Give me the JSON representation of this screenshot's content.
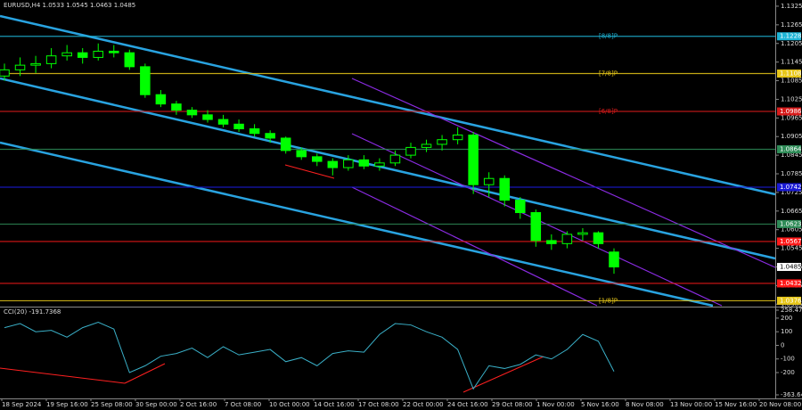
{
  "chart_data": [
    {
      "type": "candlestick",
      "symbol": "EURUSD,H4",
      "up_color": "#00ff00",
      "down_color": "#00ff00",
      "ylim": [
        1.036,
        1.1345
      ],
      "yticks": [
        1.1325,
        1.1265,
        1.1205,
        1.1145,
        1.1085,
        1.1025,
        1.0965,
        1.0905,
        1.0845,
        1.0785,
        1.0725,
        1.0665,
        1.0605,
        1.0545,
        1.0485,
        1.0425,
        1.0365
      ],
      "xlabels": [
        "18 Sep 2024",
        "19 Sep 16:00",
        "25 Sep 08:00",
        "30 Sep 00:00",
        "2 Oct 16:00",
        "7 Oct 08:00",
        "10 Oct 00:00",
        "14 Oct 16:00",
        "17 Oct 08:00",
        "22 Oct 00:00",
        "24 Oct 16:00",
        "29 Oct 08:00",
        "1 Nov 00:00",
        "5 Nov 16:00",
        "8 Nov 08:00",
        "13 Nov 00:00",
        "15 Nov 16:00",
        "20 Nov 08:00"
      ],
      "levels": [
        {
          "value": 1.1228,
          "label": "[8/8]P",
          "color": "#1fb5d6"
        },
        {
          "value": 1.1108,
          "label": "[7/8]P",
          "color": "#e6c619"
        },
        {
          "value": 1.0986,
          "label": "[6/8]P",
          "color": "#d81b1b"
        },
        {
          "value": 1.0864,
          "color": "#2e8b57"
        },
        {
          "value": 1.0742,
          "color": "#1a1ad6"
        },
        {
          "value": 1.0623,
          "color": "#2e8b57"
        },
        {
          "value": 1.0567,
          "color": "#ff1a1a"
        },
        {
          "value": 1.0432,
          "color": "#ff1a1a"
        },
        {
          "value": 1.0376,
          "label": "[1/8]P",
          "color": "#e6c619"
        }
      ],
      "candles": [
        [
          1.11,
          1.114,
          1.1085,
          1.112
        ],
        [
          1.112,
          1.116,
          1.11,
          1.1135
        ],
        [
          1.1135,
          1.1165,
          1.111,
          1.114
        ],
        [
          1.114,
          1.119,
          1.1125,
          1.1165
        ],
        [
          1.1165,
          1.12,
          1.115,
          1.1175
        ],
        [
          1.1175,
          1.119,
          1.114,
          1.116
        ],
        [
          1.116,
          1.1205,
          1.115,
          1.118
        ],
        [
          1.118,
          1.12,
          1.116,
          1.1175
        ],
        [
          1.1175,
          1.1185,
          1.112,
          1.113
        ],
        [
          1.113,
          1.114,
          1.103,
          1.104
        ],
        [
          1.104,
          1.1055,
          1.1,
          1.101
        ],
        [
          1.101,
          1.102,
          1.0975,
          1.099
        ],
        [
          1.099,
          1.1,
          1.0965,
          1.0975
        ],
        [
          1.0975,
          1.099,
          1.095,
          1.096
        ],
        [
          1.096,
          1.0975,
          1.0935,
          1.0945
        ],
        [
          1.0945,
          1.096,
          1.092,
          1.093
        ],
        [
          1.093,
          1.0945,
          1.0905,
          1.0915
        ],
        [
          1.0915,
          1.0925,
          1.0885,
          1.09
        ],
        [
          1.09,
          1.0905,
          1.085,
          1.086
        ],
        [
          1.086,
          1.087,
          1.083,
          1.084
        ],
        [
          1.084,
          1.085,
          1.081,
          1.0825
        ],
        [
          1.0825,
          1.0835,
          1.078,
          1.0805
        ],
        [
          1.0805,
          1.0845,
          1.0795,
          1.083
        ],
        [
          1.083,
          1.0845,
          1.08,
          1.081
        ],
        [
          1.081,
          1.0835,
          1.0795,
          1.082
        ],
        [
          1.082,
          1.086,
          1.081,
          1.0845
        ],
        [
          1.0845,
          1.0885,
          1.0835,
          1.087
        ],
        [
          1.087,
          1.0895,
          1.0855,
          1.088
        ],
        [
          1.088,
          1.091,
          1.086,
          1.0895
        ],
        [
          1.0895,
          1.0935,
          1.088,
          1.091
        ],
        [
          1.091,
          1.092,
          1.072,
          1.075
        ],
        [
          1.075,
          1.079,
          1.071,
          1.077
        ],
        [
          1.077,
          1.078,
          1.068,
          1.07
        ],
        [
          1.07,
          1.071,
          1.064,
          1.066
        ],
        [
          1.066,
          1.067,
          1.055,
          1.057
        ],
        [
          1.057,
          1.059,
          1.054,
          1.056
        ],
        [
          1.056,
          1.06,
          1.0545,
          1.059
        ],
        [
          1.059,
          1.061,
          1.057,
          1.0595
        ],
        [
          1.0595,
          1.06,
          1.0545,
          1.056
        ],
        [
          1.0533,
          1.0545,
          1.0463,
          1.0485
        ]
      ]
    },
    {
      "type": "line",
      "name": "CCI(20)",
      "color": "#3ab0c8",
      "ylim": [
        -363.641,
        258.4725
      ],
      "yticks": [
        258.4725,
        200,
        100,
        0,
        -100,
        -200,
        -363.641
      ],
      "values": [
        130,
        160,
        100,
        110,
        60,
        130,
        170,
        120,
        -200,
        -150,
        -80,
        -60,
        -20,
        -90,
        -10,
        -70,
        -50,
        -30,
        -120,
        -90,
        -150,
        -60,
        -40,
        -50,
        80,
        160,
        150,
        100,
        60,
        -30,
        -320,
        -150,
        -170,
        -140,
        -70,
        -100,
        -30,
        80,
        30,
        -191.7368
      ]
    }
  ]
}
